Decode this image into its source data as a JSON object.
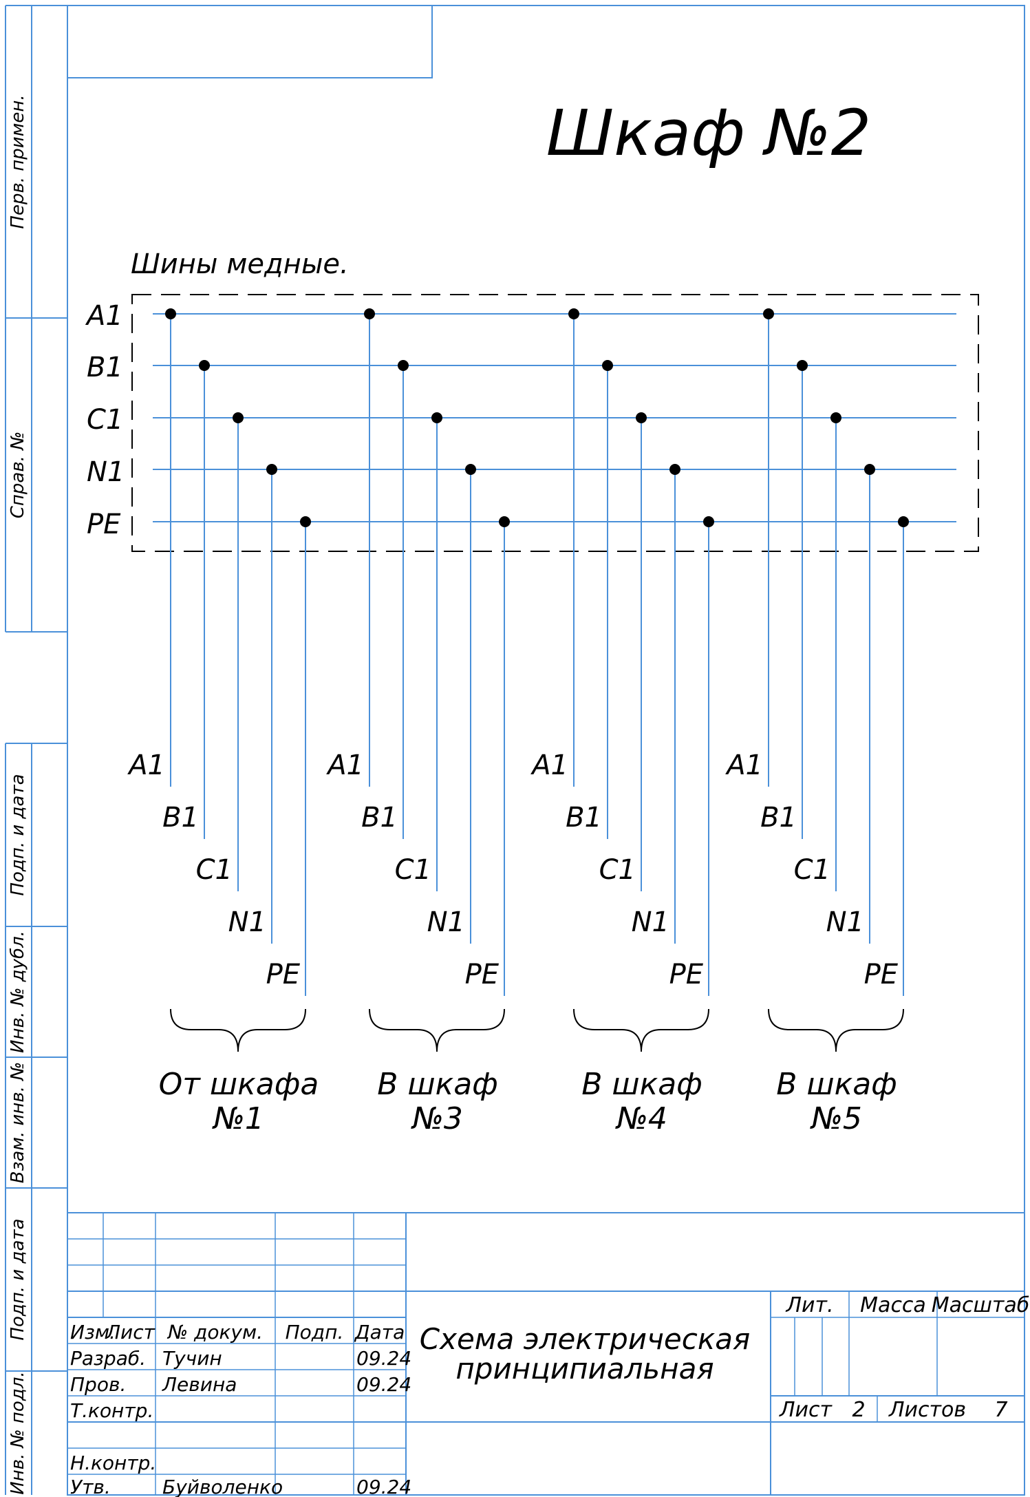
{
  "title": "Шкаф №2",
  "busbar_caption": "Шины медные.",
  "bus_labels": [
    "A1",
    "B1",
    "C1",
    "N1",
    "PE"
  ],
  "groups": [
    {
      "line1": "От шкафа",
      "line2": "№1"
    },
    {
      "line1": "В шкаф",
      "line2": "№3"
    },
    {
      "line1": "В шкаф",
      "line2": "№4"
    },
    {
      "line1": "В шкаф",
      "line2": "№5"
    }
  ],
  "side_strip": [
    "Перв. примен.",
    "Справ. №",
    "Подп. и дата",
    "Инв. № дубл.",
    "Взам. инв. №",
    "Подп. и дата",
    "Инв. № подл."
  ],
  "title_block": {
    "header": {
      "izm": "Изм.",
      "list": "Лист",
      "doc": "№ докум.",
      "podp": "Подп.",
      "date": "Дата"
    },
    "rows": [
      {
        "role": "Разраб.",
        "name": "Тучин",
        "date": "09.24"
      },
      {
        "role": "Пров.",
        "name": "Левина",
        "date": "09.24"
      },
      {
        "role": "Т.контр.",
        "name": "",
        "date": ""
      },
      {
        "role": "",
        "name": "",
        "date": ""
      },
      {
        "role": "Н.контр.",
        "name": "",
        "date": ""
      },
      {
        "role": "Утв.",
        "name": "Буйволенко",
        "date": "09.24"
      }
    ],
    "doc_name_line1": "Схема электрическая",
    "doc_name_line2": "принципиальная",
    "lit_label": "Лит.",
    "mass_label": "Масса",
    "scale_label": "Масштаб",
    "sheet_label": "Лист",
    "sheet_value": "2",
    "sheets_label": "Листов",
    "sheets_value": "7"
  }
}
